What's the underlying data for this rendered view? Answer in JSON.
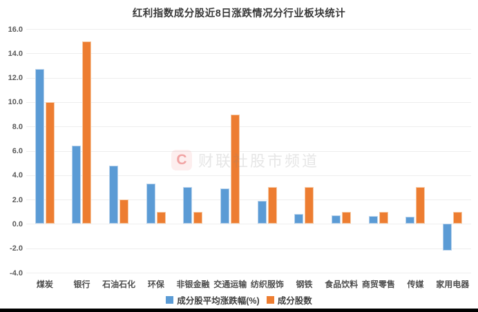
{
  "page": {
    "watermark": {
      "logo_letter": "C",
      "text": "财联社股市频道"
    }
  },
  "chart_data": {
    "type": "bar",
    "title": "红利指数成分股近8日涨跌情况分行业板块统计",
    "categories": [
      "煤炭",
      "银行",
      "石油石化",
      "环保",
      "非银金融",
      "交通运输",
      "纺织服饰",
      "钢铁",
      "食品饮料",
      "商贸零售",
      "传媒",
      "家用电器"
    ],
    "series": [
      {
        "name": "成分股平均涨跌幅(%)",
        "color": "#5B9BD5",
        "values": [
          12.7,
          6.4,
          4.8,
          3.3,
          3.0,
          2.9,
          1.9,
          0.8,
          0.7,
          0.65,
          0.6,
          -2.2
        ]
      },
      {
        "name": "成分股数",
        "color": "#ED7D31",
        "values": [
          10,
          15,
          2,
          1,
          1,
          9,
          3,
          3,
          1,
          1,
          3,
          1
        ]
      }
    ],
    "ylim": [
      -4,
      16
    ],
    "yticks": [
      16,
      14,
      12,
      10,
      8,
      6,
      4,
      2,
      0,
      -2,
      -4
    ],
    "ytick_labels": [
      "16.0",
      "14.0",
      "12.0",
      "10.0",
      "8.0",
      "6.0",
      "4.0",
      "2.0",
      "0.0",
      "-2.0",
      "-4.0"
    ],
    "grid": true,
    "legend_position": "bottom"
  }
}
